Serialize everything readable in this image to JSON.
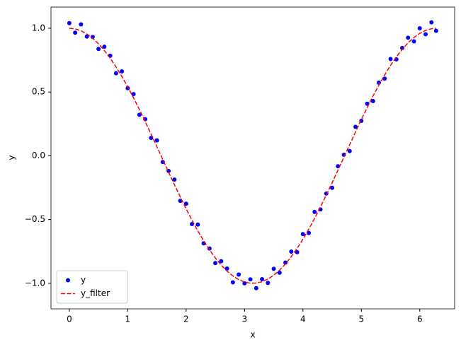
{
  "chart_data": {
    "type": "scatter",
    "xlabel": "x",
    "ylabel": "y",
    "xlim": [
      -0.314,
      6.597
    ],
    "ylim": [
      -1.2,
      1.166
    ],
    "xticks": [
      0,
      1,
      2,
      3,
      4,
      5,
      6
    ],
    "yticks": [
      {
        "value": -1.0,
        "label": "−1.0"
      },
      {
        "value": -0.5,
        "label": "−0.5"
      },
      {
        "value": 0.0,
        "label": "0.0"
      },
      0.5,
      {
        "value": 1.0,
        "label": "1.0"
      }
    ],
    "legend": "lower left",
    "series": [
      {
        "name": "y",
        "color": "#0000ff",
        "marker": "o",
        "x": [
          0,
          0.1,
          0.2,
          0.3,
          0.4,
          0.5,
          0.6,
          0.7,
          0.8,
          0.9,
          1.0,
          1.1,
          1.2,
          1.3,
          1.4,
          1.5,
          1.6,
          1.7,
          1.8,
          1.9,
          2.0,
          2.1,
          2.2,
          2.3,
          2.4,
          2.5,
          2.6,
          2.7,
          2.8,
          2.9,
          3.0,
          3.1,
          3.2,
          3.3,
          3.4,
          3.5,
          3.6,
          3.7,
          3.8,
          3.9,
          4.0,
          4.1,
          4.2,
          4.3,
          4.4,
          4.5,
          4.6,
          4.7,
          4.8,
          4.9,
          5.0,
          5.1,
          5.2,
          5.3,
          5.4,
          5.5,
          5.6,
          5.7,
          5.8,
          5.9,
          6.0,
          6.1,
          6.2,
          6.28
        ],
        "values": [
          1.04,
          0.965,
          1.03,
          0.935,
          0.931,
          0.838,
          0.855,
          0.785,
          0.647,
          0.662,
          0.53,
          0.484,
          0.322,
          0.287,
          0.14,
          0.121,
          -0.049,
          -0.119,
          -0.187,
          -0.353,
          -0.376,
          -0.535,
          -0.539,
          -0.686,
          -0.727,
          -0.841,
          -0.827,
          -0.884,
          -0.992,
          -0.931,
          -1.0,
          -0.969,
          -1.038,
          -0.967,
          -0.997,
          -0.886,
          -0.917,
          -0.837,
          -0.751,
          -0.756,
          -0.614,
          -0.605,
          -0.44,
          -0.421,
          -0.296,
          -0.251,
          -0.082,
          0.008,
          0.037,
          0.227,
          0.274,
          0.408,
          0.429,
          0.574,
          0.605,
          0.759,
          0.756,
          0.845,
          0.926,
          0.897,
          1.0,
          0.953,
          1.046,
          0.98
        ]
      },
      {
        "name": "y_filter",
        "color": "#ff0000",
        "linestyle": "--",
        "x": [
          0,
          0.1,
          0.2,
          0.3,
          0.4,
          0.5,
          0.6,
          0.7,
          0.8,
          0.9,
          1.0,
          1.1,
          1.2,
          1.3,
          1.4,
          1.5,
          1.6,
          1.7,
          1.8,
          1.9,
          2.0,
          2.1,
          2.2,
          2.3,
          2.4,
          2.5,
          2.6,
          2.7,
          2.8,
          2.9,
          3.0,
          3.1,
          3.2,
          3.3,
          3.4,
          3.5,
          3.6,
          3.7,
          3.8,
          3.9,
          4.0,
          4.1,
          4.2,
          4.3,
          4.4,
          4.5,
          4.6,
          4.7,
          4.8,
          4.9,
          5.0,
          5.1,
          5.2,
          5.3,
          5.4,
          5.5,
          5.6,
          5.7,
          5.8,
          5.9,
          6.0,
          6.1,
          6.2,
          6.28
        ],
        "values": [
          1.0,
          0.995,
          0.98,
          0.955,
          0.921,
          0.878,
          0.825,
          0.765,
          0.697,
          0.622,
          0.54,
          0.454,
          0.362,
          0.267,
          0.17,
          0.071,
          -0.029,
          -0.129,
          -0.227,
          -0.323,
          -0.416,
          -0.505,
          -0.589,
          -0.666,
          -0.737,
          -0.801,
          -0.857,
          -0.904,
          -0.942,
          -0.971,
          -0.99,
          -0.999,
          -0.998,
          -0.987,
          -0.967,
          -0.936,
          -0.897,
          -0.848,
          -0.791,
          -0.726,
          -0.654,
          -0.575,
          -0.49,
          -0.401,
          -0.307,
          -0.211,
          -0.112,
          -0.012,
          0.087,
          0.187,
          0.284,
          0.378,
          0.469,
          0.554,
          0.635,
          0.709,
          0.776,
          0.835,
          0.886,
          0.927,
          0.96,
          0.983,
          0.996,
          1.0
        ]
      }
    ]
  }
}
